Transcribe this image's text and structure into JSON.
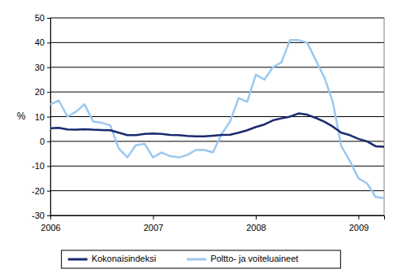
{
  "chart_data": {
    "type": "line",
    "y_label": "%",
    "x": [
      2006,
      2006.083,
      2006.167,
      2006.25,
      2006.333,
      2006.417,
      2006.5,
      2006.583,
      2006.667,
      2006.75,
      2006.833,
      2006.917,
      2007,
      2007.083,
      2007.167,
      2007.25,
      2007.333,
      2007.417,
      2007.5,
      2007.583,
      2007.667,
      2007.75,
      2007.833,
      2007.917,
      2008,
      2008.083,
      2008.167,
      2008.25,
      2008.333,
      2008.417,
      2008.5,
      2008.583,
      2008.667,
      2008.75,
      2008.833,
      2008.917,
      2009,
      2009.083,
      2009.167,
      2009.25
    ],
    "series": [
      {
        "name": "Kokonaisindeksi",
        "color": "#1b2a6e",
        "values": [
          5.3,
          5.5,
          4.8,
          4.7,
          4.9,
          4.7,
          4.6,
          4.5,
          3.5,
          2.5,
          2.5,
          3.0,
          3.2,
          3.0,
          2.6,
          2.5,
          2.2,
          2.0,
          2.0,
          2.3,
          2.6,
          2.7,
          3.5,
          4.5,
          5.8,
          6.8,
          8.5,
          9.3,
          10.0,
          11.3,
          10.8,
          9.5,
          8.0,
          6.0,
          3.5,
          2.5,
          1.0,
          0.0,
          -2.0,
          -2.2
        ]
      },
      {
        "name": "Poltto- ja voiteluaineet",
        "color": "#9cc8ef",
        "values": [
          15,
          16.5,
          10,
          12,
          15,
          8,
          7.5,
          6.5,
          -3,
          -6.5,
          -1.5,
          -1,
          -6.5,
          -4.5,
          -6,
          -6.5,
          -5.5,
          -3.5,
          -3.5,
          -4.5,
          3,
          8,
          17.5,
          16,
          27,
          25,
          30,
          32,
          41,
          41,
          40,
          33,
          26,
          16,
          -2,
          -8,
          -15,
          -17,
          -22.5,
          -23
        ]
      }
    ],
    "xlim": [
      2006,
      2009.25
    ],
    "xticks": [
      2006,
      2007,
      2008,
      2009
    ],
    "ylim": [
      -30,
      50
    ],
    "yticks": [
      -30,
      -20,
      -10,
      0,
      10,
      20,
      30,
      40,
      50
    ],
    "grid": true,
    "legend": "bottom"
  }
}
